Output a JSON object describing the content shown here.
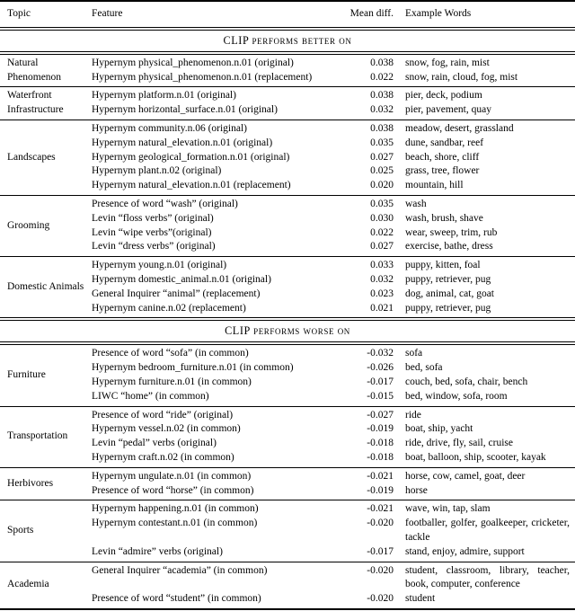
{
  "table": {
    "columns": [
      "Topic",
      "Feature",
      "Mean diff.",
      "Example Words"
    ],
    "sections": [
      {
        "title": "CLIP performs better on",
        "groups": [
          {
            "topic": "Natural Phenomenon",
            "rows": [
              {
                "feature": "Hypernym physical_phenomenon.n.01 (original)",
                "mean_diff": "0.038",
                "examples": "snow, fog, rain, mist"
              },
              {
                "feature": "Hypernym physical_phenomenon.n.01 (replacement)",
                "mean_diff": "0.022",
                "examples": "snow, rain, cloud, fog, mist"
              }
            ]
          },
          {
            "topic": "Waterfront Infrastructure",
            "rows": [
              {
                "feature": "Hypernym platform.n.01 (original)",
                "mean_diff": "0.038",
                "examples": "pier, deck, podium"
              },
              {
                "feature": "Hypernym horizontal_surface.n.01 (original)",
                "mean_diff": "0.032",
                "examples": "pier, pavement, quay"
              }
            ]
          },
          {
            "topic": "Landscapes",
            "rows": [
              {
                "feature": "Hypernym community.n.06 (original)",
                "mean_diff": "0.038",
                "examples": "meadow, desert, grassland"
              },
              {
                "feature": "Hypernym natural_elevation.n.01 (original)",
                "mean_diff": "0.035",
                "examples": "dune, sandbar, reef"
              },
              {
                "feature": "Hypernym geological_formation.n.01 (original)",
                "mean_diff": "0.027",
                "examples": "beach, shore, cliff"
              },
              {
                "feature": "Hypernym plant.n.02 (original)",
                "mean_diff": "0.025",
                "examples": "grass, tree, flower"
              },
              {
                "feature": "Hypernym natural_elevation.n.01 (replacement)",
                "mean_diff": "0.020",
                "examples": "mountain, hill"
              }
            ]
          },
          {
            "topic": "Grooming",
            "rows": [
              {
                "feature": "Presence of word “wash” (original)",
                "mean_diff": "0.035",
                "examples": "wash"
              },
              {
                "feature": "Levin “floss verbs” (original)",
                "mean_diff": "0.030",
                "examples": "wash, brush, shave"
              },
              {
                "feature": "Levin “wipe verbs”(original)",
                "mean_diff": "0.022",
                "examples": "wear, sweep, trim, rub"
              },
              {
                "feature": "Levin “dress verbs” (original)",
                "mean_diff": "0.027",
                "examples": "exercise, bathe, dress"
              }
            ]
          },
          {
            "topic": "Domestic Animals",
            "rows": [
              {
                "feature": "Hypernym young.n.01 (original)",
                "mean_diff": "0.033",
                "examples": "puppy, kitten, foal"
              },
              {
                "feature": "Hypernym domestic_animal.n.01 (original)",
                "mean_diff": "0.032",
                "examples": "puppy, retriever, pug"
              },
              {
                "feature": "General Inquirer “animal” (replacement)",
                "mean_diff": "0.023",
                "examples": "dog, animal, cat, goat"
              },
              {
                "feature": "Hypernym canine.n.02 (replacement)",
                "mean_diff": "0.021",
                "examples": "puppy, retriever, pug"
              }
            ]
          }
        ]
      },
      {
        "title": "CLIP performs worse on",
        "groups": [
          {
            "topic": "Furniture",
            "rows": [
              {
                "feature": "Presence of word “sofa” (in common)",
                "mean_diff": "-0.032",
                "examples": "sofa"
              },
              {
                "feature": "Hypernym bedroom_furniture.n.01 (in common)",
                "mean_diff": "-0.026",
                "examples": "bed, sofa"
              },
              {
                "feature": "Hypernym furniture.n.01 (in common)",
                "mean_diff": "-0.017",
                "examples": "couch, bed, sofa, chair, bench"
              },
              {
                "feature": "LIWC “home” (in common)",
                "mean_diff": "-0.015",
                "examples": "bed, window, sofa, room"
              }
            ]
          },
          {
            "topic": "Transportation",
            "rows": [
              {
                "feature": "Presence of word “ride” (original)",
                "mean_diff": "-0.027",
                "examples": "ride"
              },
              {
                "feature": "Hypernym vessel.n.02 (in common)",
                "mean_diff": "-0.019",
                "examples": "boat, ship, yacht"
              },
              {
                "feature": "Levin “pedal” verbs (original)",
                "mean_diff": "-0.018",
                "examples": "ride, drive, fly, sail, cruise"
              },
              {
                "feature": "Hypernym craft.n.02 (in common)",
                "mean_diff": "-0.018",
                "examples": "boat, balloon, ship, scooter, kayak"
              }
            ]
          },
          {
            "topic": "Herbivores",
            "rows": [
              {
                "feature": "Hypernym ungulate.n.01 (in common)",
                "mean_diff": "-0.021",
                "examples": "horse, cow, camel, goat, deer"
              },
              {
                "feature": "Presence of word “horse” (in common)",
                "mean_diff": "-0.019",
                "examples": "horse"
              }
            ]
          },
          {
            "topic": "Sports",
            "rows": [
              {
                "feature": "Hypernym happening.n.01 (in common)",
                "mean_diff": "-0.021",
                "examples": "wave, win, tap, slam"
              },
              {
                "feature": "Hypernym contestant.n.01 (in common)",
                "mean_diff": "-0.020",
                "examples": "footballer, golfer, goalkeeper, cricketer, tackle"
              },
              {
                "feature": "Levin “admire” verbs (original)",
                "mean_diff": "-0.017",
                "examples": "stand, enjoy, admire, support"
              }
            ]
          },
          {
            "topic": "Academia",
            "rows": [
              {
                "feature": "General Inquirer “academia” (in common)",
                "mean_diff": "-0.020",
                "examples": "student, classroom, library, teacher, book, computer, conference"
              },
              {
                "feature": "Presence of word “student” (in common)",
                "mean_diff": "-0.020",
                "examples": "student"
              }
            ]
          }
        ]
      }
    ]
  }
}
